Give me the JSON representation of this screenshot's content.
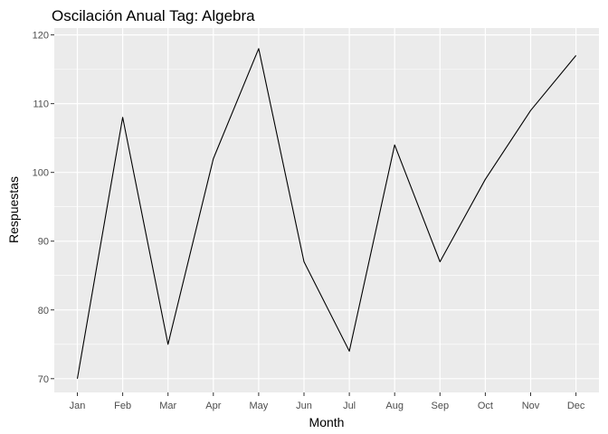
{
  "chart_data": {
    "type": "line",
    "title": "Oscilación Anual Tag: Algebra",
    "xlabel": "Month",
    "ylabel": "Respuestas",
    "categories": [
      "Jan",
      "Feb",
      "Mar",
      "Apr",
      "May",
      "Jun",
      "Jul",
      "Aug",
      "Sep",
      "Oct",
      "Nov",
      "Dec"
    ],
    "values": [
      70,
      108,
      75,
      102,
      118,
      87,
      74,
      104,
      87,
      99,
      109,
      117
    ],
    "ylim": [
      68,
      121
    ],
    "yticks": [
      70,
      80,
      90,
      100,
      110,
      120
    ],
    "grid": true,
    "colors": {
      "panel": "#ebebeb",
      "grid": "#ffffff",
      "line": "#000000",
      "tick": "#4d4d4d"
    }
  }
}
